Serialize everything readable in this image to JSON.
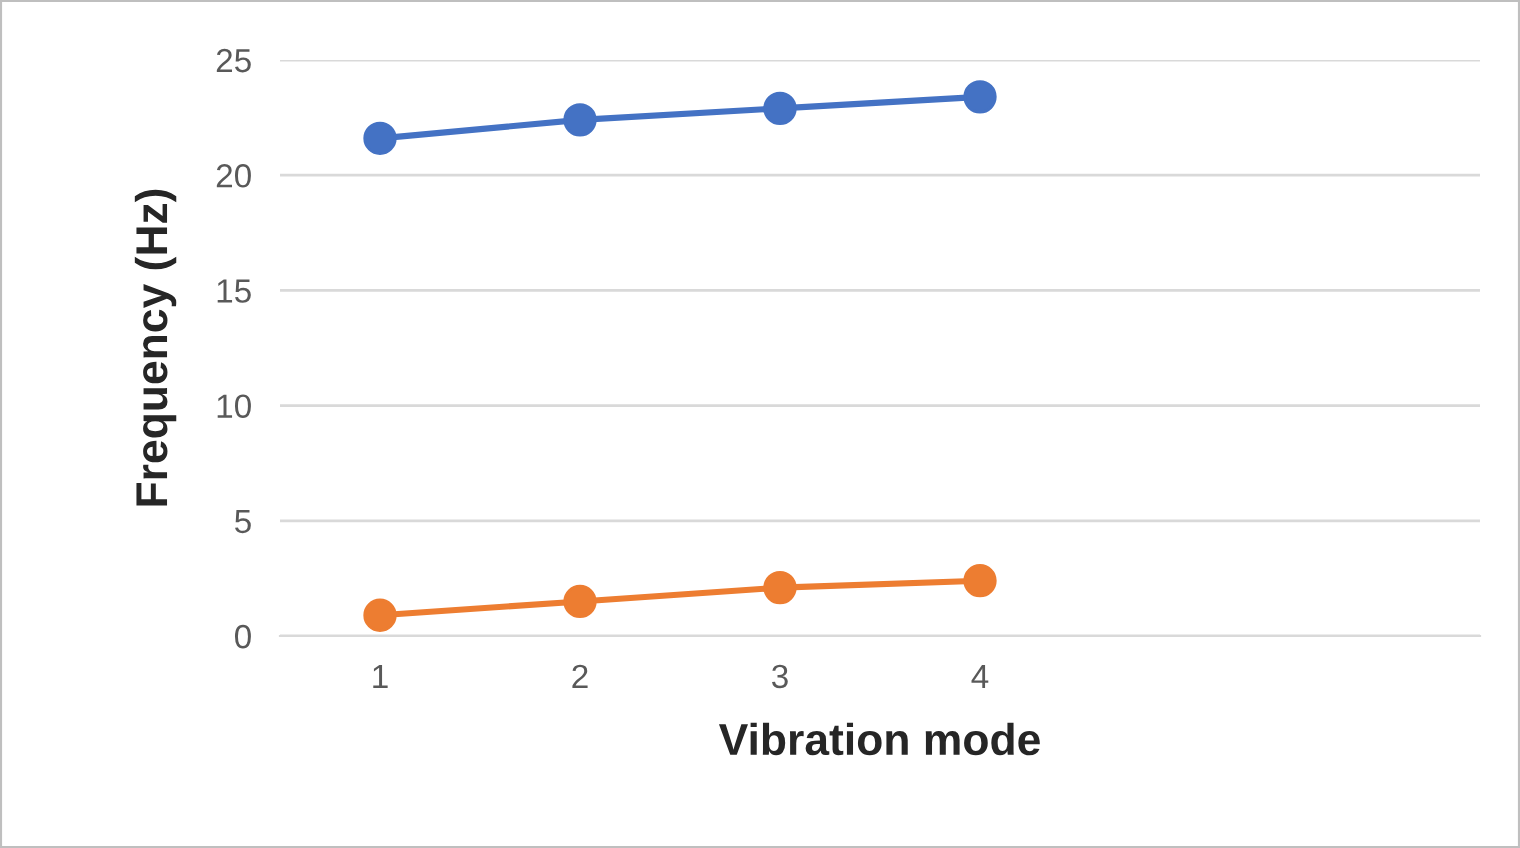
{
  "chart_data": {
    "type": "line",
    "xlabel": "Vibration mode",
    "ylabel": "Frequency (Hz)",
    "categories": [
      "1",
      "2",
      "3",
      "4",
      null,
      null
    ],
    "series": [
      {
        "color": "#4472c4",
        "values": [
          21.6,
          22.4,
          22.9,
          23.4,
          null,
          null
        ]
      },
      {
        "color": "#ed7d31",
        "values": [
          0.9,
          1.5,
          2.1,
          2.4,
          null,
          null
        ]
      }
    ],
    "ylim": [
      0,
      25
    ],
    "yticks": [
      0,
      5,
      10,
      15,
      20,
      25
    ],
    "grid": "y",
    "marker": "circle",
    "line_style": "solid"
  }
}
